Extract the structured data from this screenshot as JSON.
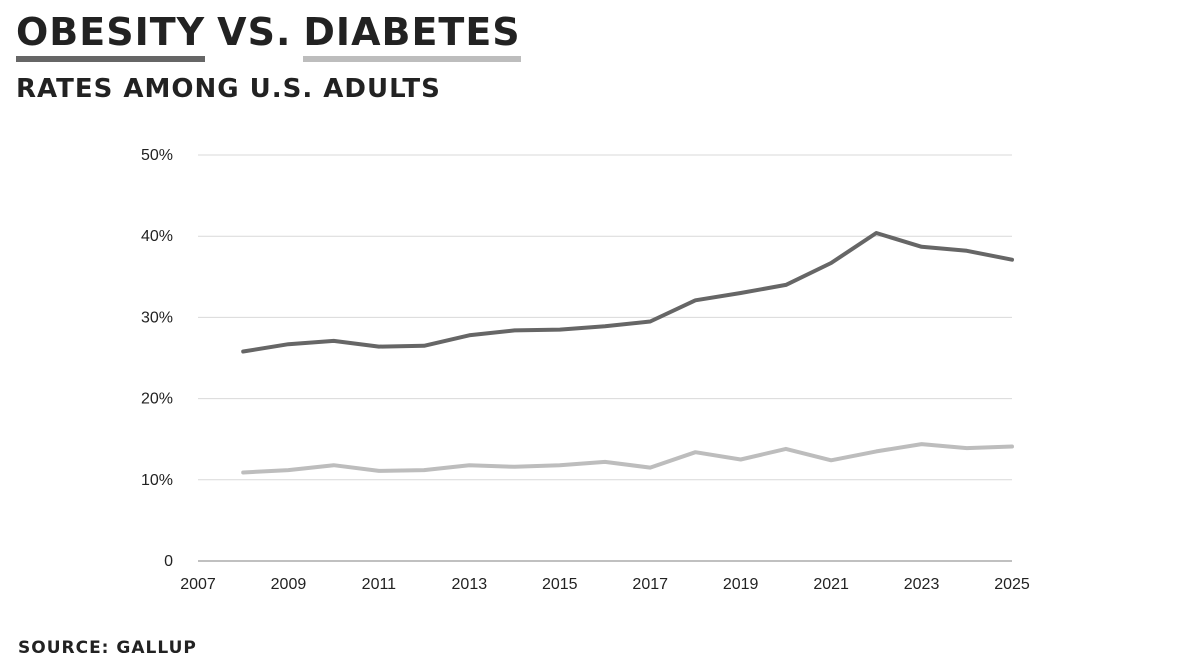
{
  "header": {
    "title_word1": "OBESITY",
    "title_vs": "VS.",
    "title_word2": "DIABETES",
    "subtitle": "RATES AMONG U.S. ADULTS"
  },
  "footer": {
    "source": "SOURCE: GALLUP"
  },
  "colors": {
    "obesity": "#666666",
    "diabetes": "#bdbdbd",
    "grid": "#d9d9d9"
  },
  "chart_data": {
    "type": "line",
    "title": "OBESITY VS. DIABETES",
    "subtitle": "RATES AMONG U.S. ADULTS",
    "xlim": [
      2007,
      2025
    ],
    "ylim": [
      0,
      50
    ],
    "grid": true,
    "x_ticks": [
      "2007",
      "2009",
      "2011",
      "2013",
      "2015",
      "2017",
      "2019",
      "2021",
      "2023",
      "2025"
    ],
    "y_ticks": [
      "0",
      "10%",
      "20%",
      "30%",
      "40%",
      "50%"
    ],
    "series": [
      {
        "name": "OBESITY",
        "color": "#666666",
        "x": [
          2008,
          2009,
          2010,
          2011,
          2012,
          2013,
          2014,
          2015,
          2016,
          2017,
          2018,
          2019,
          2020,
          2021,
          2022,
          2023,
          2024,
          2025
        ],
        "values": [
          25.8,
          26.7,
          27.1,
          26.4,
          26.5,
          27.8,
          28.4,
          28.5,
          28.9,
          29.5,
          32.1,
          33.0,
          34.0,
          36.7,
          40.4,
          38.7,
          38.2,
          37.1
        ]
      },
      {
        "name": "DIABETES",
        "color": "#bdbdbd",
        "x": [
          2008,
          2009,
          2010,
          2011,
          2012,
          2013,
          2014,
          2015,
          2016,
          2017,
          2018,
          2019,
          2020,
          2021,
          2022,
          2023,
          2024,
          2025
        ],
        "values": [
          10.9,
          11.2,
          11.8,
          11.1,
          11.2,
          11.8,
          11.6,
          11.8,
          12.2,
          11.5,
          13.4,
          12.5,
          13.8,
          12.4,
          13.5,
          14.4,
          13.9,
          14.1
        ]
      }
    ]
  }
}
